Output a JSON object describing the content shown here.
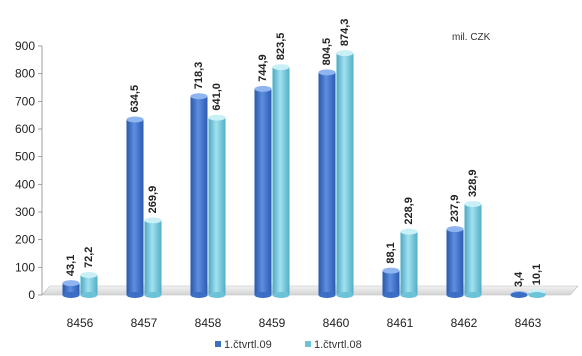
{
  "chart_data": {
    "type": "bar",
    "unit_note": "mil. CZK",
    "categories": [
      "8456",
      "8457",
      "8458",
      "8459",
      "8460",
      "8461",
      "8462",
      "8463"
    ],
    "series": [
      {
        "name": "1.čtvrtl.09",
        "values": [
          43.1,
          634.5,
          718.3,
          744.9,
          804.5,
          88.1,
          237.9,
          3.4
        ],
        "labels": [
          "43,1",
          "634,5",
          "718,3",
          "744,9",
          "804,5",
          "88,1",
          "237,9",
          "3,4"
        ],
        "color": "#3a6fc4"
      },
      {
        "name": "1.čtvrtl.08",
        "values": [
          72.2,
          269.9,
          641.0,
          823.5,
          874.3,
          228.9,
          328.9,
          10.1
        ],
        "labels": [
          "72,2",
          "269,9",
          "641,0",
          "823,5",
          "874,3",
          "228,9",
          "328,9",
          "10,1"
        ],
        "color": "#6cc3d8"
      }
    ],
    "ylim": [
      0,
      900
    ],
    "yticks": [
      "0",
      "100",
      "200",
      "300",
      "400",
      "500",
      "600",
      "700",
      "800",
      "900"
    ],
    "grid": false,
    "legend_position": "bottom"
  }
}
